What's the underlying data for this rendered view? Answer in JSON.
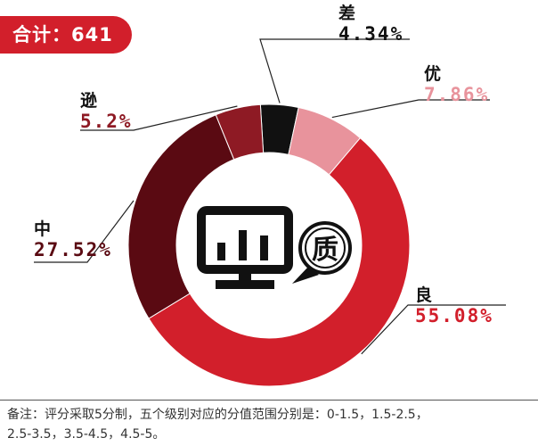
{
  "total": {
    "label": "合计：641"
  },
  "chart_data": {
    "type": "pie",
    "donut": true,
    "slices": [
      {
        "name": "差",
        "value": 4.34,
        "label": "4.34%",
        "color": "#111111"
      },
      {
        "name": "优",
        "value": 7.86,
        "label": "7.86%",
        "color": "#e8939c"
      },
      {
        "name": "良",
        "value": 55.08,
        "label": "55.08%",
        "color": "#d21f2b"
      },
      {
        "name": "中",
        "value": 27.52,
        "label": "27.52%",
        "color": "#5a0a12"
      },
      {
        "name": "逊",
        "value": 5.2,
        "label": "5.2%",
        "color": "#8e1a24"
      }
    ],
    "start_slice": "差"
  },
  "center_icon": {
    "name": "monitor-quality-icon",
    "badge_text": "质"
  },
  "footnote": {
    "line1": "备注：评分采取5分制，五个级别对应的分值范围分别是：0-1.5，1.5-2.5，",
    "line2": "2.5-3.5，3.5-4.5，4.5-5。"
  }
}
